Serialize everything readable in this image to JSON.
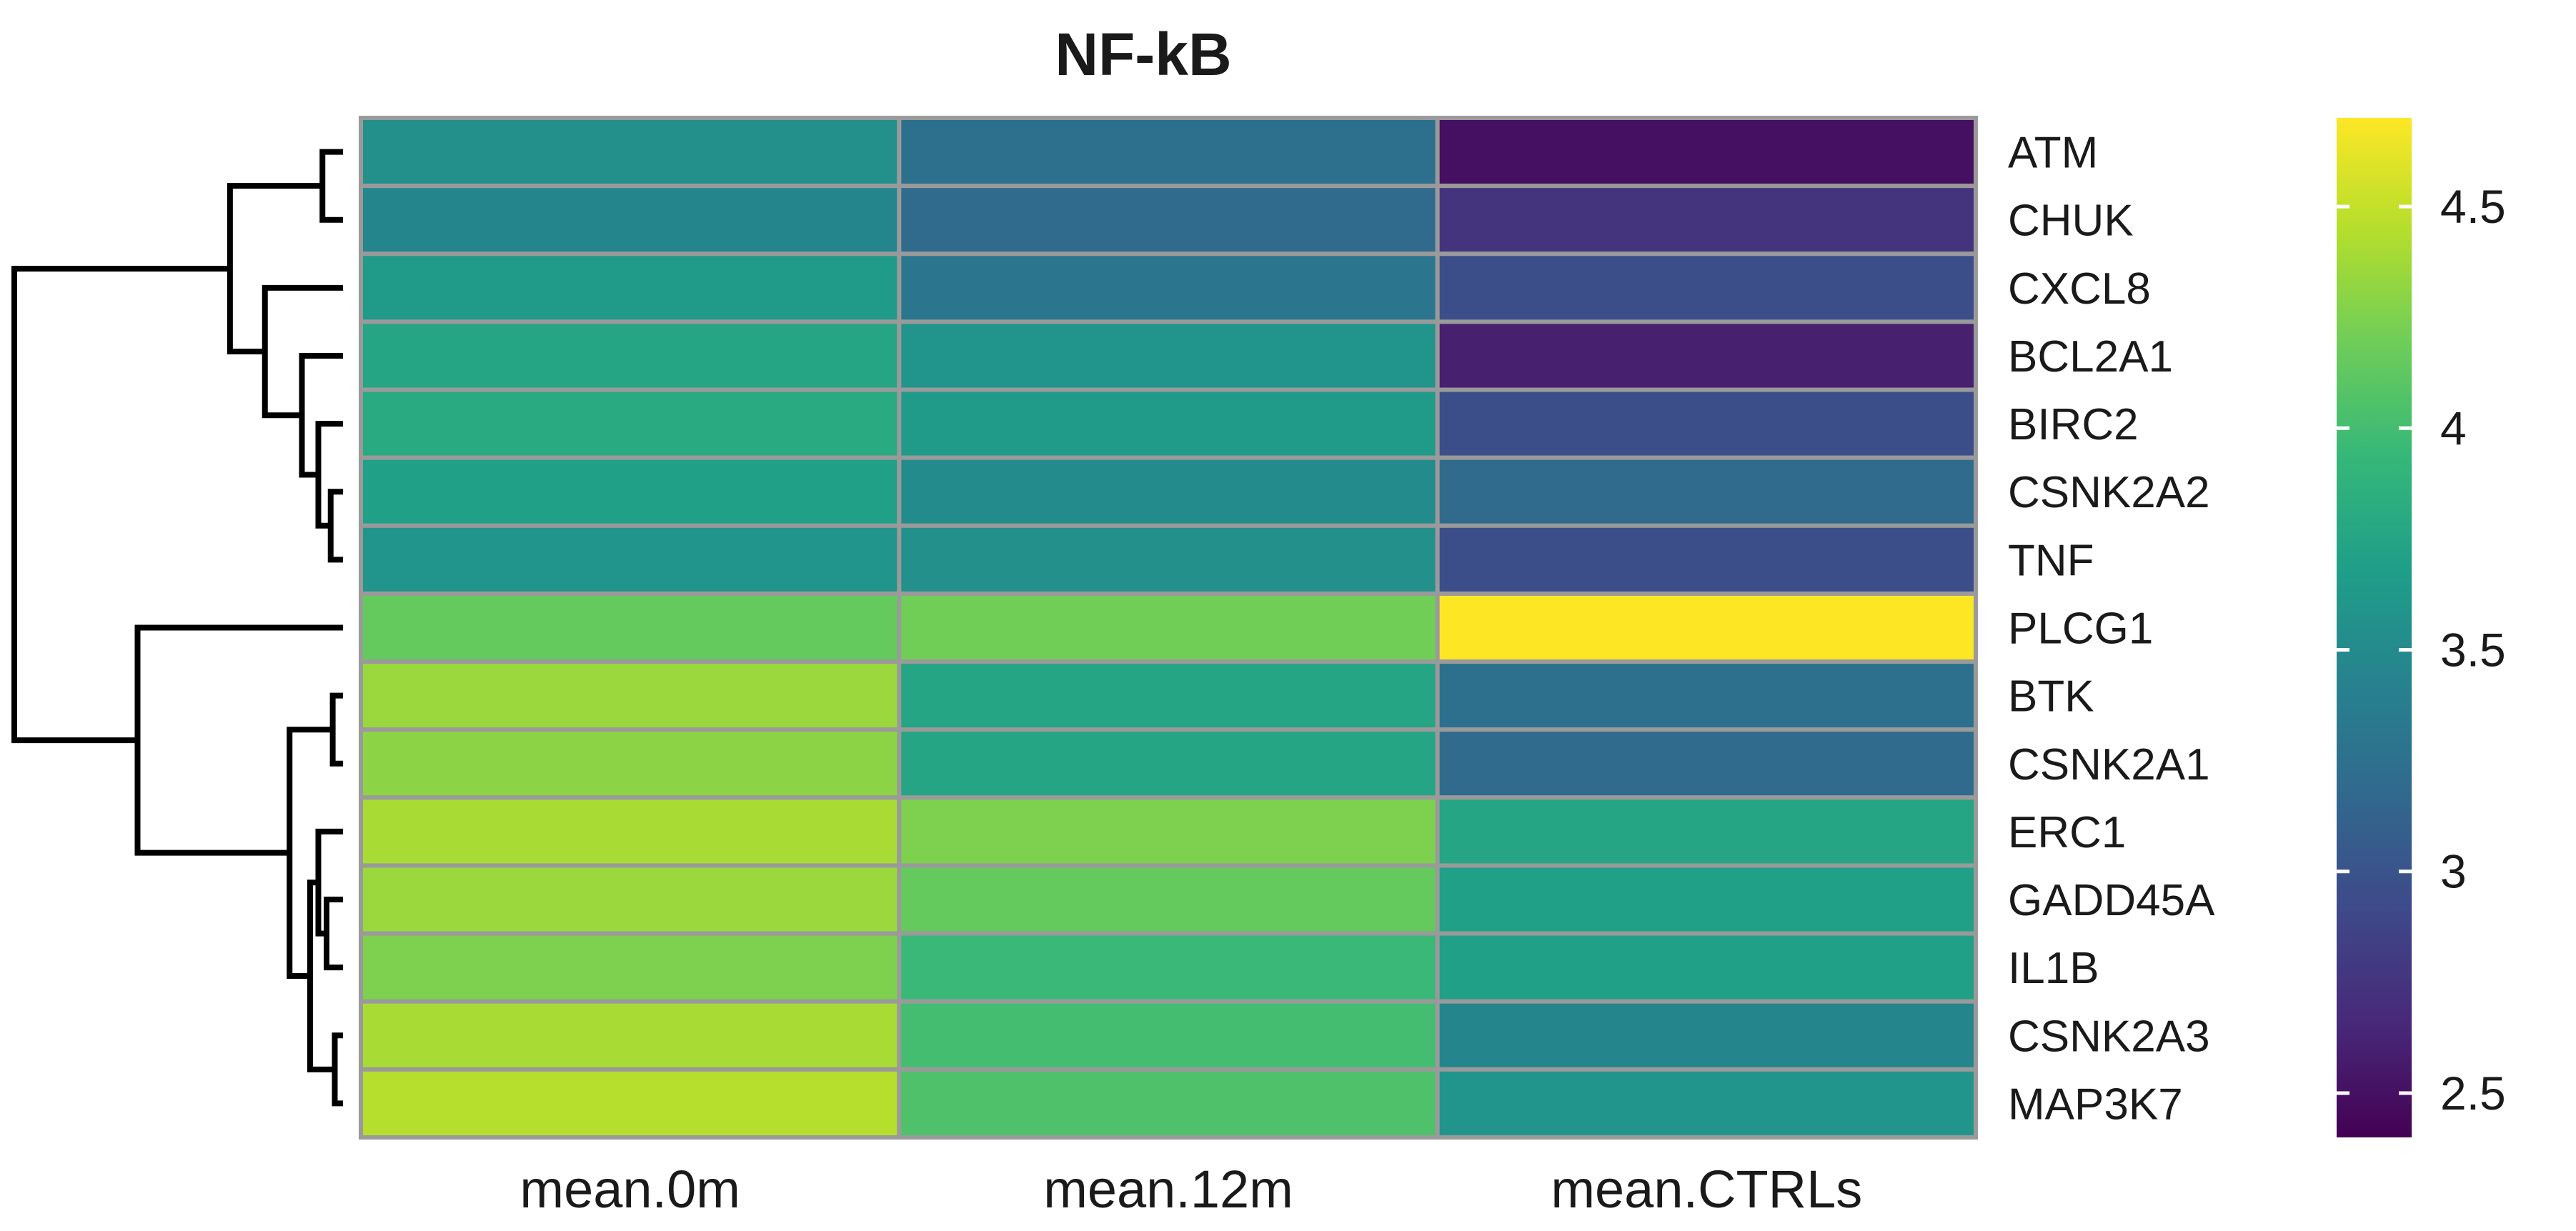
{
  "chart_data": {
    "type": "heatmap",
    "title": "NF-kB",
    "columns": [
      "mean.0m",
      "mean.12m",
      "mean.CTRLs"
    ],
    "rows": [
      "ATM",
      "CHUK",
      "CXCL8",
      "BCL2A1",
      "BIRC2",
      "CSNK2A2",
      "TNF",
      "PLCG1",
      "BTK",
      "CSNK2A1",
      "ERC1",
      "GADD45A",
      "IL1B",
      "CSNK2A3",
      "MAP3K7"
    ],
    "values": [
      [
        3.55,
        3.25,
        2.5
      ],
      [
        3.45,
        3.2,
        2.75
      ],
      [
        3.65,
        3.3,
        2.95
      ],
      [
        3.75,
        3.6,
        2.6
      ],
      [
        3.8,
        3.65,
        2.95
      ],
      [
        3.7,
        3.5,
        3.2
      ],
      [
        3.6,
        3.55,
        2.95
      ],
      [
        4.15,
        4.2,
        4.7
      ],
      [
        4.35,
        3.75,
        3.25
      ],
      [
        4.3,
        3.75,
        3.2
      ],
      [
        4.4,
        4.25,
        3.75
      ],
      [
        4.35,
        4.15,
        3.7
      ],
      [
        4.25,
        3.95,
        3.7
      ],
      [
        4.4,
        4.0,
        3.45
      ],
      [
        4.45,
        4.05,
        3.6
      ]
    ],
    "color_scale": {
      "name": "viridis",
      "range": [
        2.4,
        4.7
      ],
      "ticks": [
        2.5,
        3,
        3.5,
        4,
        4.5
      ],
      "tick_labels": [
        "2.5",
        "3",
        "3.5",
        "4",
        "4.5"
      ]
    },
    "row_dendrogram": {
      "merges": [
        [
          0,
          1,
          0.1
        ],
        [
          5,
          6,
          0.06
        ],
        [
          4,
          16,
          0.12
        ],
        [
          3,
          17,
          0.2
        ],
        [
          2,
          18,
          0.38
        ],
        [
          15,
          19,
          0.55
        ],
        [
          8,
          9,
          0.05
        ],
        [
          11,
          12,
          0.08
        ],
        [
          10,
          22,
          0.12
        ],
        [
          13,
          14,
          0.04
        ],
        [
          23,
          24,
          0.16
        ],
        [
          21,
          25,
          0.26
        ],
        [
          7,
          26,
          1.0
        ],
        [
          20,
          27,
          1.6
        ]
      ]
    },
    "legend_position": "right"
  }
}
